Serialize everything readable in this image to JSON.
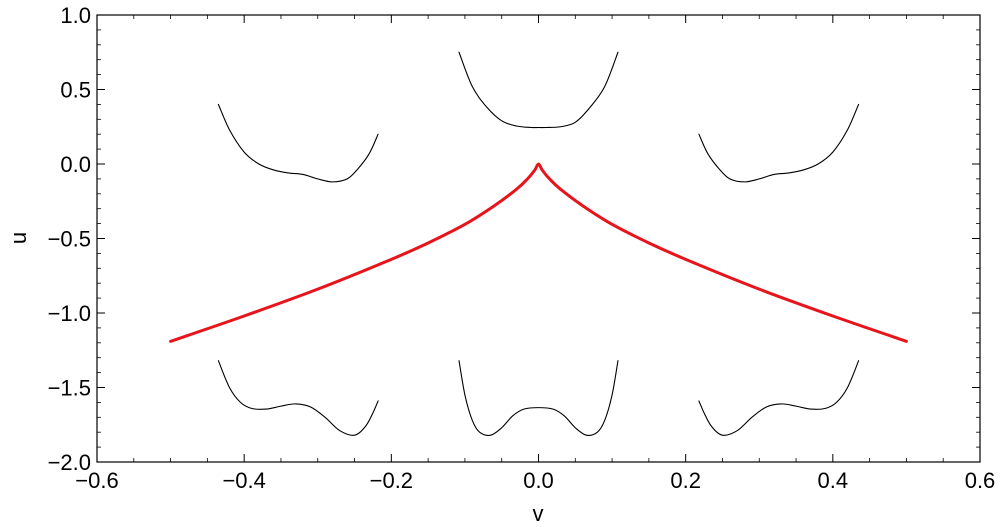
{
  "chart_data": {
    "type": "line",
    "title": "",
    "xlabel": "v",
    "ylabel": "u",
    "xlim": [
      -0.6,
      0.6
    ],
    "ylim": [
      -2.0,
      1.0
    ],
    "xticks": [
      -0.6,
      -0.4,
      -0.2,
      0.0,
      0.2,
      0.4,
      0.6
    ],
    "xtick_labels": [
      "−0.6",
      "−0.4",
      "−0.2",
      "0.0",
      "0.2",
      "0.4",
      "0.6"
    ],
    "yticks": [
      -2.0,
      -1.5,
      -1.0,
      -0.5,
      0.0,
      0.5,
      1.0
    ],
    "ytick_labels": [
      "−2.0",
      "−1.5",
      "−1.0",
      "−0.5",
      "0.0",
      "0.5",
      "1.0"
    ],
    "grid": false,
    "series": [
      {
        "color": "#e8141b",
        "x": [
          -0.5,
          -0.4,
          -0.3,
          -0.2,
          -0.15,
          -0.1,
          -0.06,
          -0.03,
          -0.015,
          -0.005,
          0.0,
          0.005,
          0.015,
          0.03,
          0.06,
          0.1,
          0.15,
          0.2,
          0.3,
          0.4,
          0.5
        ],
        "y": [
          -1.19,
          -1.02,
          -0.84,
          -0.64,
          -0.53,
          -0.405,
          -0.28,
          -0.17,
          -0.1,
          -0.04,
          0.0,
          -0.04,
          -0.1,
          -0.17,
          -0.28,
          -0.405,
          -0.53,
          -0.64,
          -0.84,
          -1.02,
          -1.19
        ]
      },
      {
        "color": "#000000",
        "x": [
          -0.435,
          -0.42,
          -0.4,
          -0.38,
          -0.36,
          -0.34,
          -0.32,
          -0.3,
          -0.28,
          -0.26,
          -0.245,
          -0.23,
          -0.218
        ],
        "y": [
          0.4,
          0.23,
          0.08,
          0.0,
          -0.04,
          -0.06,
          -0.07,
          -0.1,
          -0.12,
          -0.1,
          -0.03,
          0.07,
          0.2
        ]
      },
      {
        "color": "#000000",
        "x": [
          -0.108,
          -0.09,
          -0.07,
          -0.05,
          -0.03,
          -0.01,
          0.0,
          0.01,
          0.03,
          0.05,
          0.07,
          0.09,
          0.108
        ],
        "y": [
          0.75,
          0.52,
          0.38,
          0.29,
          0.255,
          0.245,
          0.245,
          0.245,
          0.25,
          0.28,
          0.38,
          0.52,
          0.75
        ]
      },
      {
        "color": "#000000",
        "x": [
          0.218,
          0.23,
          0.245,
          0.26,
          0.28,
          0.3,
          0.32,
          0.34,
          0.36,
          0.38,
          0.4,
          0.42,
          0.435
        ],
        "y": [
          0.2,
          0.07,
          -0.03,
          -0.1,
          -0.12,
          -0.1,
          -0.07,
          -0.06,
          -0.04,
          0.0,
          0.08,
          0.23,
          0.4
        ]
      },
      {
        "color": "#000000",
        "x": [
          -0.435,
          -0.42,
          -0.405,
          -0.39,
          -0.37,
          -0.35,
          -0.33,
          -0.31,
          -0.29,
          -0.27,
          -0.25,
          -0.235,
          -0.225,
          -0.218
        ],
        "y": [
          -1.32,
          -1.5,
          -1.6,
          -1.64,
          -1.645,
          -1.625,
          -1.61,
          -1.63,
          -1.7,
          -1.79,
          -1.82,
          -1.76,
          -1.67,
          -1.59
        ]
      },
      {
        "color": "#000000",
        "x": [
          -0.108,
          -0.1,
          -0.09,
          -0.08,
          -0.065,
          -0.05,
          -0.035,
          -0.02,
          0.0,
          0.02,
          0.035,
          0.05,
          0.065,
          0.08,
          0.09,
          0.1,
          0.108
        ],
        "y": [
          -1.32,
          -1.55,
          -1.72,
          -1.8,
          -1.82,
          -1.77,
          -1.69,
          -1.645,
          -1.635,
          -1.645,
          -1.69,
          -1.77,
          -1.82,
          -1.8,
          -1.72,
          -1.55,
          -1.32
        ]
      },
      {
        "color": "#000000",
        "x": [
          0.218,
          0.225,
          0.235,
          0.25,
          0.27,
          0.29,
          0.31,
          0.33,
          0.35,
          0.37,
          0.39,
          0.405,
          0.42,
          0.435
        ],
        "y": [
          -1.59,
          -1.67,
          -1.76,
          -1.82,
          -1.79,
          -1.7,
          -1.63,
          -1.61,
          -1.625,
          -1.645,
          -1.64,
          -1.6,
          -1.5,
          -1.32
        ]
      }
    ]
  }
}
